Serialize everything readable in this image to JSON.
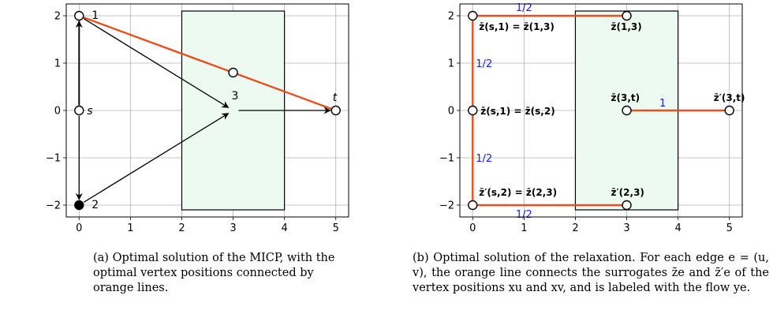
{
  "colors": {
    "path": "#e8501e",
    "arrow": "#000000",
    "region_fill": "#ecfaf1",
    "region_stroke": "#000000",
    "grid": "#b0b0b0",
    "flow_label": "#1a1aff"
  },
  "chart_data": [
    {
      "type": "scatter",
      "title": "",
      "xlabel": "",
      "ylabel": "",
      "xlim": [
        -0.25,
        5.25
      ],
      "ylim": [
        -2.25,
        2.25
      ],
      "grid": true,
      "xticks": [
        0,
        1,
        2,
        3,
        4,
        5
      ],
      "yticks": [
        -2,
        -1,
        0,
        1,
        2
      ],
      "xtick_labels": [
        "0",
        "1",
        "2",
        "3",
        "4",
        "5"
      ],
      "ytick_labels": [
        "−2",
        "−1",
        "0",
        "1",
        "2"
      ],
      "region": {
        "x": [
          2,
          4
        ],
        "y": [
          -2.1,
          2.1
        ]
      },
      "vertices": [
        {
          "label": "s",
          "x": 0,
          "y": 0,
          "filled": false,
          "italic": true
        },
        {
          "label": "1",
          "x": 0,
          "y": 2,
          "filled": false,
          "italic": false
        },
        {
          "label": "2",
          "x": 0,
          "y": -2,
          "filled": true,
          "italic": false
        },
        {
          "label": "3",
          "x": 3,
          "y": 0,
          "filled": false,
          "italic": false
        },
        {
          "label": "t",
          "x": 5,
          "y": 0,
          "filled": false,
          "italic": true
        }
      ],
      "extra_points": [
        {
          "x": 3,
          "y": 0.8
        }
      ],
      "arrows": [
        {
          "from": [
            0,
            0
          ],
          "to": [
            0,
            2
          ]
        },
        {
          "from": [
            0,
            0
          ],
          "to": [
            0,
            -2
          ]
        },
        {
          "from": [
            0,
            2
          ],
          "to": [
            3,
            0
          ]
        },
        {
          "from": [
            0,
            -2
          ],
          "to": [
            3,
            0
          ]
        },
        {
          "from": [
            3,
            0
          ],
          "to": [
            5,
            0
          ]
        }
      ],
      "orange_path": [
        [
          0,
          0
        ],
        [
          0,
          2
        ],
        [
          3,
          0.8
        ],
        [
          5,
          0
        ]
      ]
    },
    {
      "type": "line",
      "title": "",
      "xlabel": "",
      "ylabel": "",
      "xlim": [
        -0.25,
        5.25
      ],
      "ylim": [
        -2.25,
        2.25
      ],
      "grid": true,
      "xticks": [
        0,
        1,
        2,
        3,
        4,
        5
      ],
      "yticks": [
        -2,
        -1,
        0,
        1,
        2
      ],
      "xtick_labels": [
        "0",
        "1",
        "2",
        "3",
        "4",
        "5"
      ],
      "ytick_labels": [
        "−2",
        "−1",
        "0",
        "1",
        "2"
      ],
      "region": {
        "x": [
          2,
          4
        ],
        "y": [
          -2.1,
          2.1
        ]
      },
      "points": [
        {
          "x": 0,
          "y": 2
        },
        {
          "x": 3,
          "y": 2
        },
        {
          "x": 0,
          "y": 0
        },
        {
          "x": 3,
          "y": 0
        },
        {
          "x": 5,
          "y": 0
        },
        {
          "x": 0,
          "y": -2
        },
        {
          "x": 3,
          "y": -2
        }
      ],
      "segments": [
        {
          "from": [
            0,
            2
          ],
          "to": [
            3,
            2
          ]
        },
        {
          "from": [
            0,
            2
          ],
          "to": [
            0,
            0
          ]
        },
        {
          "from": [
            0,
            0
          ],
          "to": [
            0,
            -2
          ]
        },
        {
          "from": [
            0,
            -2
          ],
          "to": [
            3,
            -2
          ]
        },
        {
          "from": [
            3,
            0
          ],
          "to": [
            5,
            0
          ]
        }
      ],
      "flow_labels": [
        {
          "text": "1/2",
          "x": 1.0,
          "y": 2.0
        },
        {
          "text": "1/2",
          "x": 0.0,
          "y": 1.0
        },
        {
          "text": "1/2",
          "x": 0.0,
          "y": -1.0
        },
        {
          "text": "1/2",
          "x": 1.0,
          "y": -2.0
        },
        {
          "text": "1",
          "x": 3.7,
          "y": 0.0
        }
      ],
      "surrogate_labels": [
        {
          "text": "z̄(s,1) = z̄(1,3)",
          "x": 0.0,
          "y": 2.0
        },
        {
          "text": "z̄(1,3)",
          "x": 3.0,
          "y": 2.0
        },
        {
          "text": "z̄(s,1) = z̄(s,2)",
          "x": 0.0,
          "y": 0.0
        },
        {
          "text": "z̄(3,t)",
          "x": 3.0,
          "y": 0.0
        },
        {
          "text": "z̄′(3,t)",
          "x": 5.0,
          "y": 0.0
        },
        {
          "text": "z̄′(s,2) = z̄(2,3)",
          "x": 0.0,
          "y": -2.0
        },
        {
          "text": "z̄′(2,3)",
          "x": 3.0,
          "y": -2.0
        }
      ]
    }
  ],
  "captions": {
    "a": "(a) Optimal solution of the MICP, with the optimal vertex positions connected by orange lines.",
    "b": "(b) Optimal solution of the relaxation. For each edge e = (u, v), the orange line connects the surrogates z̄e and z̄′e of the vertex positions xu and xv, and is labeled with the flow ye."
  }
}
